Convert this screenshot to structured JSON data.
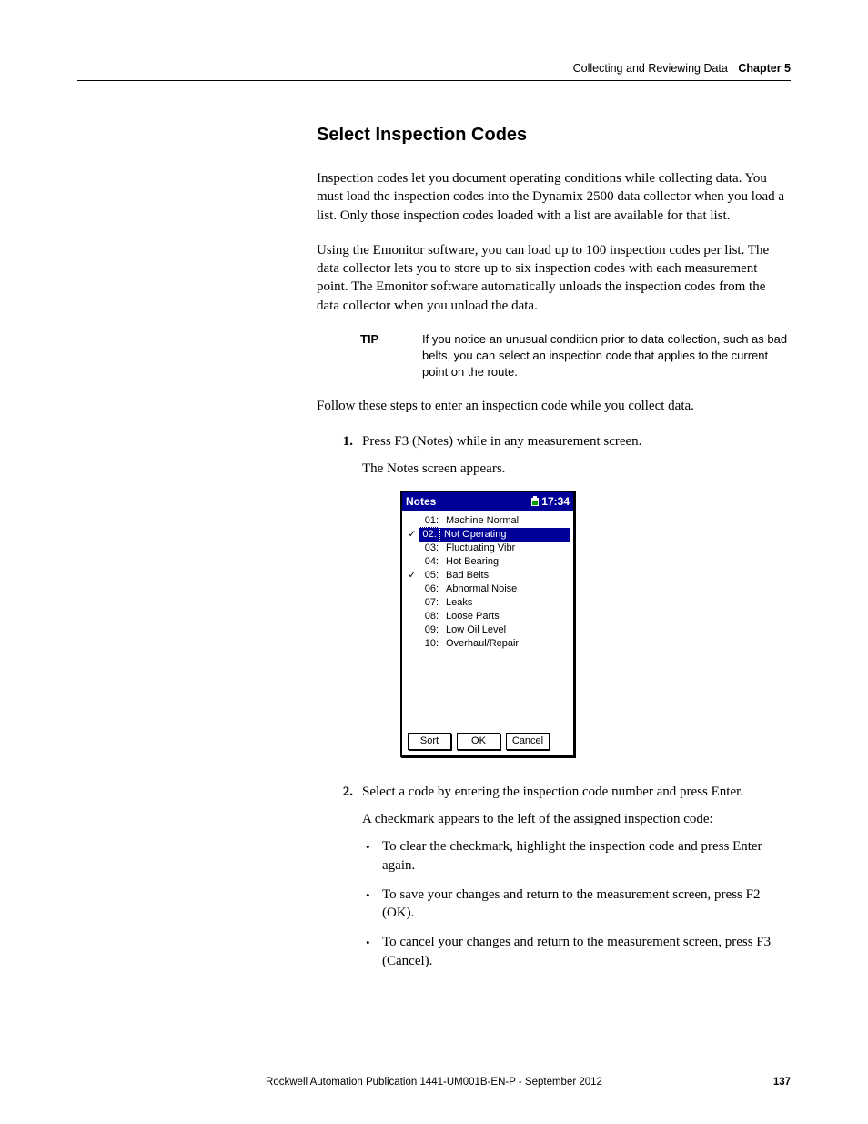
{
  "header": {
    "section": "Collecting and Reviewing Data",
    "chapter": "Chapter 5"
  },
  "h2": "Select Inspection Codes",
  "p1": "Inspection codes let you document operating conditions while collecting data. You must load the inspection codes into the Dynamix 2500 data collector when you load a list. Only those inspection codes loaded with a list are available for that list.",
  "p2": "Using the Emonitor software, you can load up to 100 inspection codes per list. The data collector lets you to store up to six inspection codes with each measurement point. The Emonitor software automatically unloads the inspection codes from the data collector when you unload the data.",
  "tip": {
    "label": "TIP",
    "text": "If you notice an unusual condition prior to data collection, such as bad belts, you can select an inspection code that applies to the current point on the route."
  },
  "p3": "Follow these steps to enter an inspection code while you collect data.",
  "steps": {
    "s1": {
      "num": "1.",
      "text": "Press F3 (Notes) while in any measurement screen.",
      "sub": "The Notes screen appears."
    },
    "s2": {
      "num": "2.",
      "text": "Select a code by entering the inspection code number and press Enter.",
      "sub": "A checkmark appears to the left of the assigned inspection code:",
      "b1": "To clear the checkmark, highlight the inspection code and press Enter again.",
      "b2": "To save your changes and return to the measurement screen, press F2 (OK).",
      "b3": "To cancel your changes and return to the measurement screen, press F3 (Cancel)."
    }
  },
  "screen": {
    "title": "Notes",
    "time": "17:34",
    "rows": [
      {
        "check": "",
        "num": "01:",
        "label": "Machine Normal",
        "selected": false
      },
      {
        "check": "✓",
        "num": "02:",
        "label": "Not Operating",
        "selected": true
      },
      {
        "check": "",
        "num": "03:",
        "label": "Fluctuating Vibr",
        "selected": false
      },
      {
        "check": "",
        "num": "04:",
        "label": "Hot Bearing",
        "selected": false
      },
      {
        "check": "✓",
        "num": "05:",
        "label": "Bad Belts",
        "selected": false
      },
      {
        "check": "",
        "num": "06:",
        "label": "Abnormal Noise",
        "selected": false
      },
      {
        "check": "",
        "num": "07:",
        "label": "Leaks",
        "selected": false
      },
      {
        "check": "",
        "num": "08:",
        "label": "Loose Parts",
        "selected": false
      },
      {
        "check": "",
        "num": "09:",
        "label": "Low Oil Level",
        "selected": false
      },
      {
        "check": "",
        "num": "10:",
        "label": "Overhaul/Repair",
        "selected": false
      }
    ],
    "buttons": {
      "b1": "Sort",
      "b2": "OK",
      "b3": "Cancel"
    }
  },
  "footer": {
    "text": "Rockwell Automation Publication 1441-UM001B-EN-P - September 2012",
    "page": "137"
  }
}
